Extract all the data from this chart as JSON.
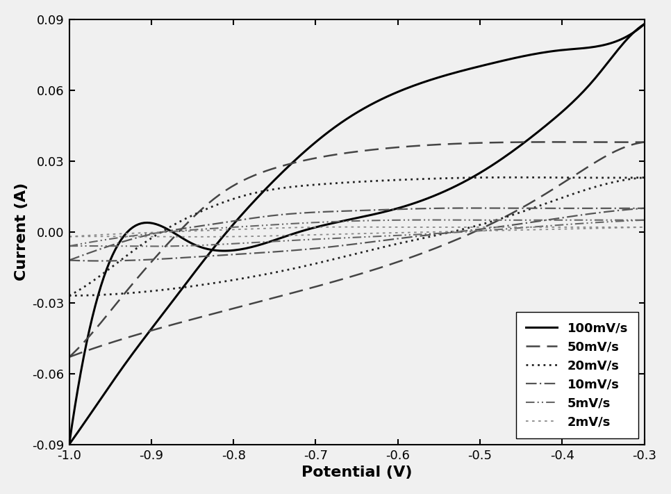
{
  "title": "",
  "xlabel": "Potential (V)",
  "ylabel": "Current (A)",
  "xlim": [
    -1.0,
    -0.3
  ],
  "ylim": [
    -0.09,
    0.09
  ],
  "xticks": [
    -1.0,
    -0.9,
    -0.8,
    -0.7,
    -0.6,
    -0.5,
    -0.4,
    -0.3
  ],
  "yticks": [
    -0.09,
    -0.06,
    -0.03,
    0.0,
    0.03,
    0.06,
    0.09
  ],
  "background_color": "#f0f0f0",
  "curves": [
    {
      "label": "100mV/s",
      "color": "#000000",
      "linestyle": "solid",
      "linewidth": 2.2,
      "forward_x": [
        -1.0,
        -0.97,
        -0.93,
        -0.88,
        -0.82,
        -0.75,
        -0.67,
        -0.58,
        -0.49,
        -0.4,
        -0.32,
        -0.3
      ],
      "forward_y": [
        -0.09,
        -0.075,
        -0.055,
        -0.032,
        -0.005,
        0.022,
        0.046,
        0.062,
        0.071,
        0.077,
        0.083,
        0.088
      ],
      "backward_x": [
        -0.3,
        -0.32,
        -0.36,
        -0.42,
        -0.5,
        -0.6,
        -0.72,
        -0.85,
        -0.95,
        -1.0
      ],
      "backward_y": [
        0.088,
        0.082,
        0.065,
        0.045,
        0.025,
        0.01,
        0.0,
        -0.005,
        -0.012,
        -0.09
      ]
    },
    {
      "label": "50mV/s",
      "color": "#444444",
      "linestyle": "dashed",
      "linewidth": 1.8,
      "forward_x": [
        -1.0,
        -0.97,
        -0.93,
        -0.88,
        -0.82,
        -0.74,
        -0.65,
        -0.55,
        -0.45,
        -0.35,
        -0.3
      ],
      "forward_y": [
        -0.053,
        -0.042,
        -0.025,
        -0.005,
        0.015,
        0.028,
        0.034,
        0.037,
        0.038,
        0.038,
        0.038
      ],
      "backward_x": [
        -0.3,
        -0.33,
        -0.38,
        -0.44,
        -0.52,
        -0.62,
        -0.73,
        -0.85,
        -0.95,
        -1.0
      ],
      "backward_y": [
        0.038,
        0.035,
        0.025,
        0.012,
        -0.002,
        -0.015,
        -0.026,
        -0.037,
        -0.047,
        -0.053
      ]
    },
    {
      "label": "20mV/s",
      "color": "#222222",
      "linestyle": "dotted",
      "linewidth": 2.0,
      "forward_x": [
        -1.0,
        -0.96,
        -0.91,
        -0.85,
        -0.78,
        -0.7,
        -0.6,
        -0.5,
        -0.4,
        -0.3
      ],
      "forward_y": [
        -0.027,
        -0.018,
        -0.005,
        0.007,
        0.016,
        0.02,
        0.022,
        0.023,
        0.023,
        0.023
      ],
      "backward_x": [
        -0.3,
        -0.35,
        -0.42,
        -0.5,
        -0.6,
        -0.72,
        -0.83,
        -0.93,
        -1.0
      ],
      "backward_y": [
        0.023,
        0.02,
        0.012,
        0.003,
        -0.005,
        -0.015,
        -0.022,
        -0.026,
        -0.027
      ]
    },
    {
      "label": "10mV/s",
      "color": "#555555",
      "linestyle": "dashdot",
      "linewidth": 1.6,
      "forward_x": [
        -1.0,
        -0.96,
        -0.9,
        -0.83,
        -0.75,
        -0.65,
        -0.55,
        -0.45,
        -0.35,
        -0.3
      ],
      "forward_y": [
        -0.012,
        -0.007,
        -0.001,
        0.003,
        0.007,
        0.009,
        0.01,
        0.01,
        0.01,
        0.01
      ],
      "backward_x": [
        -0.3,
        -0.38,
        -0.48,
        -0.58,
        -0.7,
        -0.82,
        -0.92,
        -1.0
      ],
      "backward_y": [
        0.01,
        0.007,
        0.002,
        -0.002,
        -0.007,
        -0.01,
        -0.012,
        -0.012
      ]
    },
    {
      "label": "5mV/s",
      "color": "#666666",
      "linestyle": "dashdotdotted",
      "linewidth": 1.5,
      "forward_x": [
        -1.0,
        -0.95,
        -0.88,
        -0.8,
        -0.7,
        -0.6,
        -0.5,
        -0.4,
        -0.3
      ],
      "forward_y": [
        -0.006,
        -0.003,
        0.0,
        0.002,
        0.004,
        0.005,
        0.005,
        0.005,
        0.005
      ],
      "backward_x": [
        -0.3,
        -0.4,
        -0.52,
        -0.63,
        -0.75,
        -0.87,
        -0.95,
        -1.0
      ],
      "backward_y": [
        0.005,
        0.003,
        0.0,
        -0.002,
        -0.004,
        -0.006,
        -0.006,
        -0.006
      ]
    },
    {
      "label": "2mV/s",
      "color": "#888888",
      "linestyle": "dashed",
      "linewidth": 1.3,
      "dash_pattern": [
        2,
        3
      ],
      "forward_x": [
        -1.0,
        -0.95,
        -0.88,
        -0.8,
        -0.7,
        -0.6,
        -0.5,
        -0.4,
        -0.3
      ],
      "forward_y": [
        -0.002,
        -0.001,
        0.0,
        0.001,
        0.002,
        0.002,
        0.002,
        0.002,
        0.002
      ],
      "backward_x": [
        -0.3,
        -0.42,
        -0.55,
        -0.68,
        -0.8,
        -0.9,
        -1.0
      ],
      "backward_y": [
        0.002,
        0.001,
        0.0,
        -0.001,
        -0.002,
        -0.002,
        -0.002
      ]
    }
  ]
}
